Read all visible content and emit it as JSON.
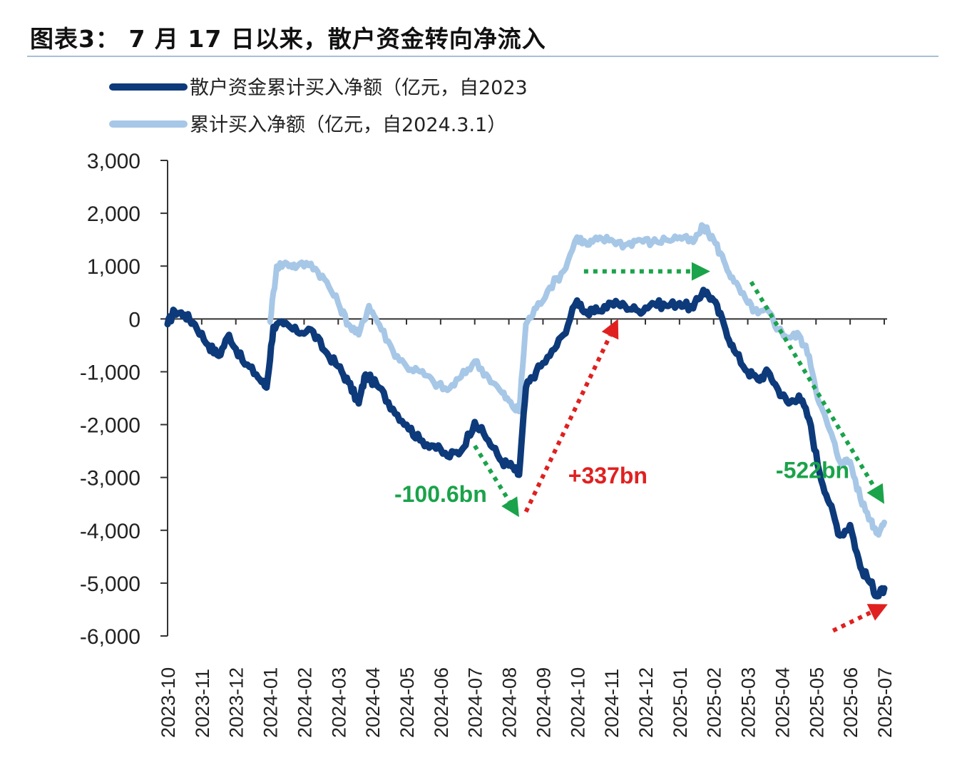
{
  "chart_data": {
    "type": "line",
    "title": "图表3： 7 月 17 日以来，散户资金转向净流入",
    "ylabel": "",
    "xlabel": "",
    "ylim": [
      -6000,
      3000
    ],
    "yticks": [
      3000,
      2000,
      1000,
      0,
      -1000,
      -2000,
      -3000,
      -4000,
      -5000,
      -6000
    ],
    "ytick_labels": [
      "3,000",
      "2,000",
      "1,000",
      "0",
      "-1,000",
      "-2,000",
      "-3,000",
      "-4,000",
      "-5,000",
      "-6,000"
    ],
    "categories": [
      "2023-10",
      "2023-11",
      "2023-12",
      "2024-01",
      "2024-02",
      "2024-03",
      "2024-04",
      "2024-05",
      "2024-06",
      "2024-07",
      "2024-08",
      "2024-09",
      "2024-10",
      "2024-11",
      "2024-12",
      "2025-01",
      "2025-02",
      "2025-03",
      "2025-04",
      "2025-05",
      "2025-06",
      "2025-07"
    ],
    "legend_position": "top-left",
    "grid": false,
    "series": [
      {
        "name": "散户资金累计买入净额（亿元，自2023",
        "color": "#0d3a7a",
        "points": [
          [
            0,
            -100
          ],
          [
            0.2,
            150
          ],
          [
            0.5,
            80
          ],
          [
            0.8,
            -100
          ],
          [
            1.2,
            -500
          ],
          [
            1.5,
            -700
          ],
          [
            1.8,
            -300
          ],
          [
            2.2,
            -800
          ],
          [
            2.6,
            -1050
          ],
          [
            2.9,
            -1300
          ],
          [
            3.1,
            -150
          ],
          [
            3.4,
            -100
          ],
          [
            3.8,
            -250
          ],
          [
            4.2,
            -200
          ],
          [
            4.6,
            -600
          ],
          [
            5.0,
            -900
          ],
          [
            5.3,
            -1200
          ],
          [
            5.6,
            -1600
          ],
          [
            5.8,
            -1050
          ],
          [
            6.2,
            -1300
          ],
          [
            6.6,
            -1700
          ],
          [
            7.0,
            -2000
          ],
          [
            7.4,
            -2300
          ],
          [
            7.8,
            -2400
          ],
          [
            8.2,
            -2600
          ],
          [
            8.6,
            -2500
          ],
          [
            9.0,
            -1950
          ],
          [
            9.4,
            -2300
          ],
          [
            9.8,
            -2700
          ],
          [
            10.1,
            -2800
          ],
          [
            10.3,
            -2950
          ],
          [
            10.5,
            -1300
          ],
          [
            10.8,
            -1000
          ],
          [
            11.2,
            -700
          ],
          [
            11.6,
            -300
          ],
          [
            12.0,
            350
          ],
          [
            12.3,
            100
          ],
          [
            12.6,
            150
          ],
          [
            13.0,
            300
          ],
          [
            13.4,
            250
          ],
          [
            13.8,
            150
          ],
          [
            14.2,
            300
          ],
          [
            14.6,
            250
          ],
          [
            15.0,
            300
          ],
          [
            15.4,
            200
          ],
          [
            15.7,
            550
          ],
          [
            16.0,
            350
          ],
          [
            16.3,
            -100
          ],
          [
            16.6,
            -600
          ],
          [
            17.0,
            -1000
          ],
          [
            17.3,
            -1150
          ],
          [
            17.6,
            -1000
          ],
          [
            17.9,
            -1350
          ],
          [
            18.2,
            -1600
          ],
          [
            18.5,
            -1450
          ],
          [
            18.8,
            -1900
          ],
          [
            19.1,
            -2900
          ],
          [
            19.4,
            -3500
          ],
          [
            19.7,
            -4100
          ],
          [
            20.0,
            -3900
          ],
          [
            20.3,
            -4700
          ],
          [
            20.6,
            -5000
          ],
          [
            20.8,
            -5250
          ],
          [
            21.0,
            -5100
          ]
        ]
      },
      {
        "name": "累计买入净额（亿元，自2024.3.1）",
        "color": "#a7c7e7",
        "points": [
          [
            3.0,
            -50
          ],
          [
            3.2,
            1000
          ],
          [
            3.5,
            1050
          ],
          [
            3.8,
            1000
          ],
          [
            4.2,
            1050
          ],
          [
            4.6,
            750
          ],
          [
            5.0,
            300
          ],
          [
            5.3,
            -100
          ],
          [
            5.6,
            -300
          ],
          [
            5.9,
            250
          ],
          [
            6.2,
            -100
          ],
          [
            6.6,
            -600
          ],
          [
            7.0,
            -900
          ],
          [
            7.4,
            -1000
          ],
          [
            7.8,
            -1200
          ],
          [
            8.2,
            -1350
          ],
          [
            8.6,
            -1100
          ],
          [
            9.0,
            -800
          ],
          [
            9.4,
            -1100
          ],
          [
            9.8,
            -1400
          ],
          [
            10.1,
            -1650
          ],
          [
            10.3,
            -1750
          ],
          [
            10.5,
            -100
          ],
          [
            10.8,
            200
          ],
          [
            11.2,
            600
          ],
          [
            11.6,
            900
          ],
          [
            12.0,
            1550
          ],
          [
            12.3,
            1400
          ],
          [
            12.6,
            1500
          ],
          [
            13.0,
            1500
          ],
          [
            13.4,
            1400
          ],
          [
            13.8,
            1500
          ],
          [
            14.2,
            1450
          ],
          [
            14.6,
            1500
          ],
          [
            15.0,
            1550
          ],
          [
            15.4,
            1450
          ],
          [
            15.7,
            1750
          ],
          [
            16.0,
            1500
          ],
          [
            16.3,
            1100
          ],
          [
            16.6,
            700
          ],
          [
            17.0,
            300
          ],
          [
            17.3,
            100
          ],
          [
            17.6,
            150
          ],
          [
            17.9,
            -200
          ],
          [
            18.2,
            -350
          ],
          [
            18.5,
            -300
          ],
          [
            18.8,
            -700
          ],
          [
            19.1,
            -1600
          ],
          [
            19.4,
            -2100
          ],
          [
            19.7,
            -2700
          ],
          [
            20.0,
            -2700
          ],
          [
            20.3,
            -3400
          ],
          [
            20.6,
            -3800
          ],
          [
            20.8,
            -4050
          ],
          [
            21.0,
            -3850
          ]
        ]
      }
    ],
    "annotations": [
      {
        "text": "-100.6bn",
        "color": "#1aa34a",
        "arrow": {
          "from": [
            9.0,
            -2400
          ],
          "to": [
            10.3,
            -3750
          ]
        },
        "label_at": [
          8.0,
          -3300
        ]
      },
      {
        "text": "+337bn",
        "color": "#e02020",
        "arrow": {
          "from": [
            10.5,
            -3650
          ],
          "to": [
            13.2,
            0
          ]
        },
        "label_at": [
          12.9,
          -2950
        ]
      },
      {
        "text": "",
        "color": "#1aa34a",
        "arrow": {
          "from": [
            12.2,
            900
          ],
          "to": [
            15.9,
            900
          ]
        },
        "label_at": null
      },
      {
        "text": "-522bn",
        "color": "#1aa34a",
        "arrow": {
          "from": [
            17.1,
            700
          ],
          "to": [
            21.0,
            -3500
          ]
        },
        "label_at": [
          18.9,
          -2850
        ]
      },
      {
        "text": "",
        "color": "#e02020",
        "arrow": {
          "from": [
            19.5,
            -5900
          ],
          "to": [
            21.1,
            -5400
          ]
        },
        "label_at": null
      }
    ]
  }
}
